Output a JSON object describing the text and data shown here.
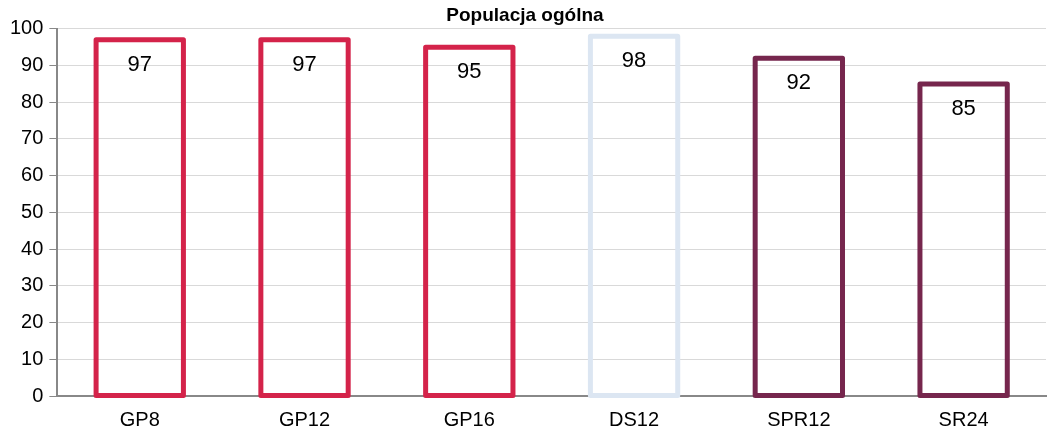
{
  "chart_data": {
    "type": "bar",
    "title": "Populacja ogólna",
    "categories": [
      "GP8",
      "GP12",
      "GP16",
      "DS12",
      "SPR12",
      "SR24"
    ],
    "values": [
      97,
      97,
      95,
      98,
      92,
      85
    ],
    "colors": [
      "#d4234a",
      "#d4234a",
      "#d4234a",
      "#dce6f2",
      "#76264d",
      "#76264d"
    ],
    "ylim": [
      0,
      100
    ],
    "yticks": [
      0,
      10,
      20,
      30,
      40,
      50,
      60,
      70,
      80,
      90,
      100
    ],
    "grid": "y",
    "data_labels": true
  }
}
